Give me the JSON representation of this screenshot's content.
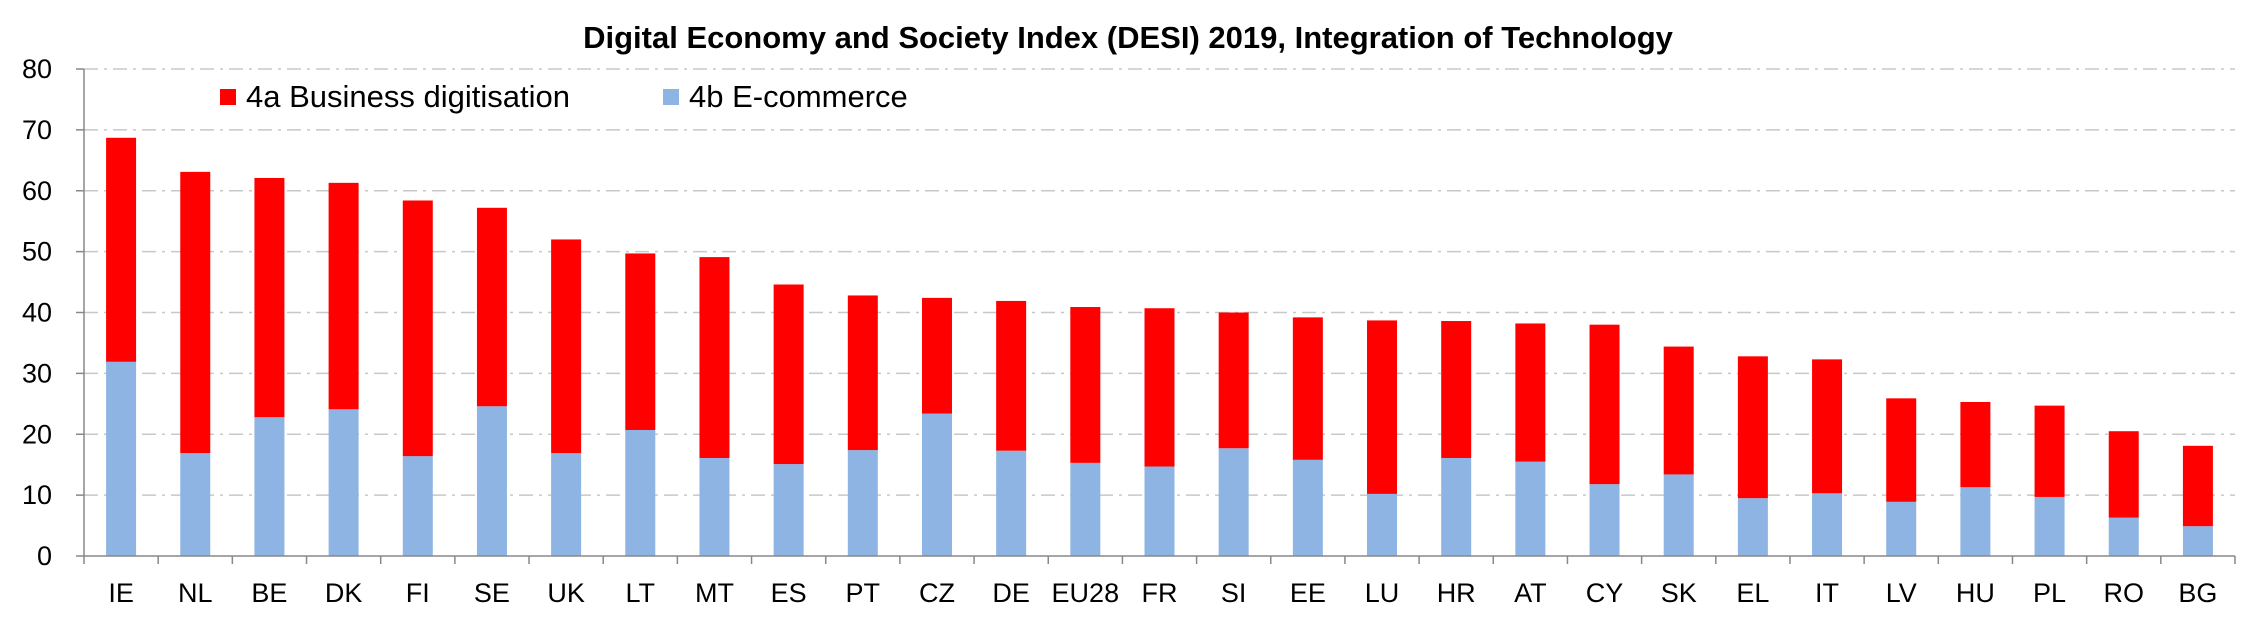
{
  "chart_data": {
    "type": "bar",
    "stacked": true,
    "title": "Digital Economy and Society Index (DESI) 2019, Integration of Technology",
    "xlabel": "",
    "ylabel": "",
    "ylim": [
      0,
      80
    ],
    "yticks": [
      0,
      10,
      20,
      30,
      40,
      50,
      60,
      70,
      80
    ],
    "grid": true,
    "legend_position": "top-left",
    "categories": [
      "IE",
      "NL",
      "BE",
      "DK",
      "FI",
      "SE",
      "UK",
      "LT",
      "MT",
      "ES",
      "PT",
      "CZ",
      "DE",
      "EU28",
      "FR",
      "SI",
      "EE",
      "LU",
      "HR",
      "AT",
      "CY",
      "SK",
      "EL",
      "IT",
      "LV",
      "HU",
      "PL",
      "RO",
      "BG"
    ],
    "series": [
      {
        "name": "4a Business digitisation",
        "color": "#ff0000",
        "values": [
          36.8,
          46.2,
          39.3,
          37.2,
          42.0,
          32.6,
          35.1,
          29.0,
          33.0,
          29.5,
          25.4,
          19.0,
          24.6,
          25.6,
          26.0,
          22.3,
          23.4,
          28.5,
          22.5,
          22.7,
          26.2,
          21.0,
          23.3,
          22.0,
          17.0,
          14.0,
          15.0,
          14.2,
          13.2
        ]
      },
      {
        "name": "4b E-commerce",
        "color": "#8db4e2",
        "values": [
          31.9,
          16.9,
          22.8,
          24.1,
          16.4,
          24.6,
          16.9,
          20.7,
          16.1,
          15.1,
          17.4,
          23.4,
          17.3,
          15.3,
          14.7,
          17.7,
          15.8,
          10.2,
          16.1,
          15.5,
          11.8,
          13.4,
          9.5,
          10.3,
          8.9,
          11.3,
          9.7,
          6.3,
          4.9
        ]
      }
    ],
    "legend_order": [
      0,
      1
    ]
  }
}
